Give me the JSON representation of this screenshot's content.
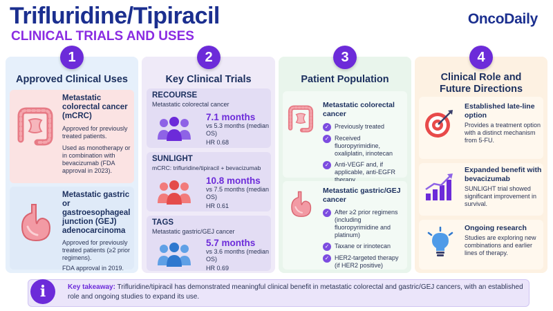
{
  "header": {
    "title": "Trifluridine/Tipiracil",
    "subtitle": "CLINICAL TRIALS AND USES",
    "brand": "OncoDaily"
  },
  "colors": {
    "accent": "#6c2bd9",
    "navy": "#1b2f8f"
  },
  "columns": [
    {
      "number": "1",
      "title": "Approved Clinical Uses"
    },
    {
      "number": "2",
      "title": "Key Clinical Trials"
    },
    {
      "number": "3",
      "title": "Patient Population"
    },
    {
      "number": "4",
      "title": "Clinical Role and Future Directions"
    }
  ],
  "uses": [
    {
      "icon": "colon-icon",
      "title": "Metastatic colorectal cancer (mCRC)",
      "text1": "Approved for previously treated patients.",
      "text2": "Used as monotherapy or in combination with bevacizumab (FDA approval in 2023)."
    },
    {
      "icon": "stomach-icon",
      "title": "Metastatic gastric or gastroesophageal junction (GEJ) adenocarcinoma",
      "text1": "Approved for previously treated patients (≥2 prior regimens).",
      "text2": "FDA approval in 2019."
    }
  ],
  "trials": [
    {
      "name": "RECOURSE",
      "desc": "Metastatic colorectal cancer",
      "value": "7.1 months",
      "vs": "vs 5.3 months (median OS)",
      "hr": "HR 0.68",
      "color": "#7c4ce0"
    },
    {
      "name": "SUNLIGHT",
      "desc": "mCRC: trifluridine/tipiracil + bevacizumab",
      "value": "10.8 months",
      "vs": "vs 7.5 months (median OS)",
      "hr": "HR 0.61",
      "color": "#ee5a5a"
    },
    {
      "name": "TAGS",
      "desc": "Metastatic gastric/GEJ cancer",
      "value": "5.7 months",
      "vs": "vs 3.6 months (median OS)",
      "hr": "HR 0.69",
      "color": "#3e86d6"
    }
  ],
  "population": [
    {
      "title": "Metastatic colorectal cancer",
      "items": [
        "Previously treated",
        "Received fluoropyrimidine, oxaliplatin, irinotecan",
        "Anti-VEGF and, if applicable, anti-EGFR therapy"
      ]
    },
    {
      "title": "Metastatic gastric/GEJ cancer",
      "items": [
        "After ≥2 prior regimens (including fluoropyrimidine and platinum)",
        "Taxane or irinotecan",
        "HER2-targeted therapy (if HER2 positive)"
      ]
    }
  ],
  "roles": [
    {
      "icon": "target-icon",
      "title": "Established late-line option",
      "text": "Provides a treatment option with a distinct mechanism from 5-FU."
    },
    {
      "icon": "growth-chart-icon",
      "title": "Expanded benefit with bevacizumab",
      "text": "SUNLIGHT trial showed significant improvement in survival."
    },
    {
      "icon": "lightbulb-icon",
      "title": "Ongoing research",
      "text": "Studies are exploring new combinations and earlier lines of therapy."
    }
  ],
  "takeaway": {
    "label": "Key takeaway:",
    "text": "Trifluridine/tipiracil has demonstrated meaningful clinical benefit in metastatic colorectal and gastric/GEJ cancers, with an established role and ongoing studies to expand its use."
  }
}
